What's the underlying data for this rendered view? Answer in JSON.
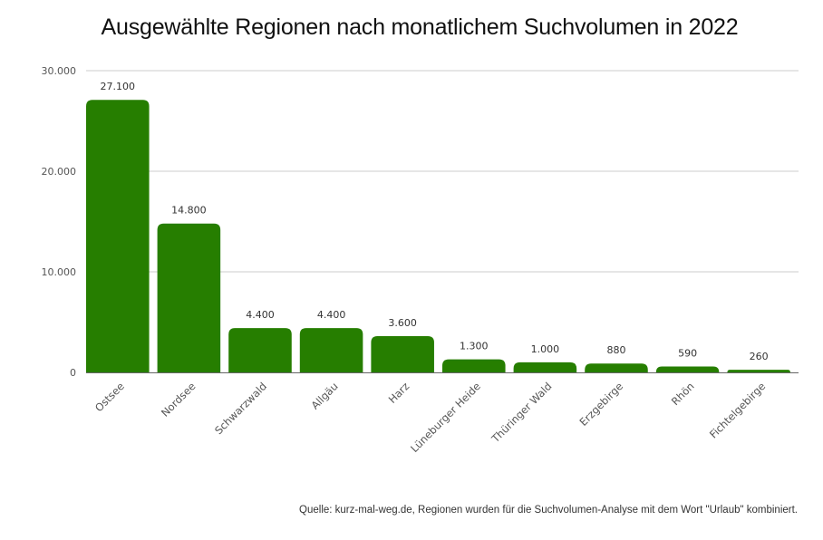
{
  "chart_data": {
    "type": "bar",
    "title": "Ausgewählte Regionen nach monatlichem Suchvolumen in 2022",
    "xlabel": "",
    "ylabel": "",
    "categories": [
      "Ostsee",
      "Nordsee",
      "Schwarzwald",
      "Allgäu",
      "Harz",
      "Lüneburger Heide",
      "Thüringer Wald",
      "Erzgebirge",
      "Rhön",
      "Fichtelgebirge"
    ],
    "values": [
      27100,
      14800,
      4400,
      4400,
      3600,
      1300,
      1000,
      880,
      590,
      260
    ],
    "value_labels": [
      "27.100",
      "14.800",
      "4.400",
      "4.400",
      "3.600",
      "1.300",
      "1.000",
      "880",
      "590",
      "260"
    ],
    "ylim": [
      0,
      30000
    ],
    "yticks": [
      0,
      10000,
      20000,
      30000
    ],
    "ytick_labels": [
      "0",
      "10.000",
      "20.000",
      "30.000"
    ],
    "grid": true,
    "legend": "none",
    "bar_color": "#267e00",
    "source": "Quelle: kurz-mal-weg.de, Regionen wurden für die Suchvolumen-Analyse mit dem Wort \"Urlaub\" kombiniert."
  }
}
